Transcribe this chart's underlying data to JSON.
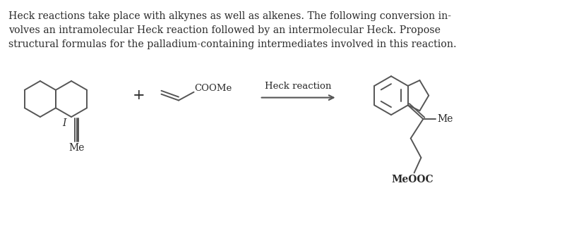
{
  "background_color": "#ffffff",
  "text_color": "#2a2a2a",
  "title_text": "Heck reactions take place with alkynes as well as alkenes. The following conversion in-\nvolves an intramolecular Heck reaction followed by an intermolecular Heck. Propose\nstructural formulas for the palladium-containing intermediates involved in this reaction.",
  "title_fontsize": 10.2,
  "reaction_label": "Heck reaction",
  "plus_sign": "+",
  "coome_label": "COOMe",
  "me_label_left": "Me",
  "me_label_right": "— Me",
  "meooc_label": "MeOOC",
  "I_label": "I",
  "line_color": "#555555",
  "line_width": 1.4
}
